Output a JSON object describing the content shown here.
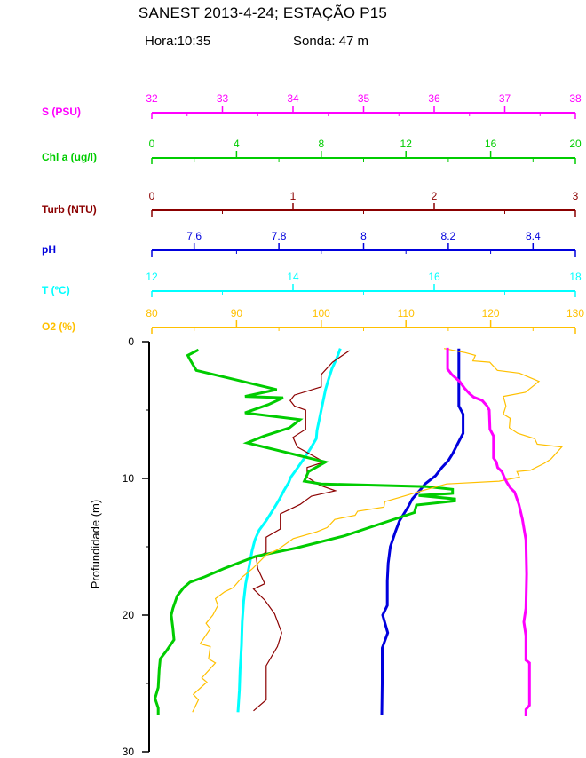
{
  "header": {
    "title": "SANEST 2013-4-24; ESTAÇÃO P15",
    "hora": "Hora:10:35",
    "sonda": "Sonda: 47 m"
  },
  "chart_data": {
    "type": "line",
    "orientation": "vertical-profile",
    "grid": false,
    "legend": "none",
    "depth_axis": {
      "label": "Profundidade (m)",
      "min": 0,
      "max": 30,
      "labels": [
        {
          "v": 0,
          "t": "0"
        },
        {
          "v": 10,
          "t": "10"
        },
        {
          "v": 20,
          "t": "20"
        },
        {
          "v": 30,
          "t": "30"
        }
      ],
      "minors": [
        5,
        15,
        25
      ],
      "color": "#000000"
    },
    "axes": [
      {
        "id": "S",
        "name": "S (PSU)",
        "color": "#FF00FF",
        "min": 32,
        "max": 38,
        "labels": [
          {
            "v": 32,
            "t": "32"
          },
          {
            "v": 33,
            "t": "33"
          },
          {
            "v": 34,
            "t": "34"
          },
          {
            "v": 35,
            "t": "35"
          },
          {
            "v": 36,
            "t": "36"
          },
          {
            "v": 37,
            "t": "37"
          },
          {
            "v": 38,
            "t": "38"
          }
        ],
        "minors": [
          32.5,
          33.5,
          34.5,
          35.5,
          36.5,
          37.5
        ]
      },
      {
        "id": "Chl",
        "name": "Chl a (ug/l)",
        "color": "#00CC00",
        "min": 0,
        "max": 20,
        "labels": [
          {
            "v": 0,
            "t": "0"
          },
          {
            "v": 4,
            "t": "4"
          },
          {
            "v": 8,
            "t": "8"
          },
          {
            "v": 12,
            "t": "12"
          },
          {
            "v": 16,
            "t": "16"
          },
          {
            "v": 20,
            "t": "20"
          }
        ],
        "minors": [
          2,
          6,
          10,
          14,
          18
        ]
      },
      {
        "id": "Turb",
        "name": "Turb (NTU)",
        "color": "#8B0000",
        "min": 0,
        "max": 3,
        "labels": [
          {
            "v": 0,
            "t": "0"
          },
          {
            "v": 1,
            "t": "1"
          },
          {
            "v": 2,
            "t": "2"
          },
          {
            "v": 3,
            "t": "3"
          }
        ],
        "minors": [
          0.5,
          1.5,
          2.5
        ]
      },
      {
        "id": "pH",
        "name": "pH",
        "color": "#0000DD",
        "min": 7.5,
        "max": 8.5,
        "labels": [
          {
            "v": 7.6,
            "t": "7.6"
          },
          {
            "v": 7.8,
            "t": "7.8"
          },
          {
            "v": 8,
            "t": "8"
          },
          {
            "v": 8.2,
            "t": "8.2"
          },
          {
            "v": 8.4,
            "t": "8.4"
          }
        ],
        "minors": [
          7.7,
          7.9,
          8.1,
          8.3
        ]
      },
      {
        "id": "T",
        "name": "T (ºC)",
        "color": "#00FFFF",
        "min": 12,
        "max": 18,
        "labels": [
          {
            "v": 12,
            "t": "12"
          },
          {
            "v": 14,
            "t": "14"
          },
          {
            "v": 16,
            "t": "16"
          },
          {
            "v": 18,
            "t": "18"
          }
        ],
        "minors": [
          13,
          15,
          17
        ]
      },
      {
        "id": "O2",
        "name": "O2 (%)",
        "color": "#FFC000",
        "min": 80,
        "max": 130,
        "labels": [
          {
            "v": 80,
            "t": "80"
          },
          {
            "v": 90,
            "t": "90"
          },
          {
            "v": 100,
            "t": "100"
          },
          {
            "v": 110,
            "t": "110"
          },
          {
            "v": 120,
            "t": "120"
          },
          {
            "v": 130,
            "t": "130"
          }
        ],
        "minors": [
          85,
          95,
          105,
          115,
          125
        ]
      }
    ],
    "series": [
      {
        "axis": "T",
        "name": "temperature-profile",
        "color": "#00FFFF",
        "width": 3,
        "points": [
          [
            14.67,
            0.5
          ],
          [
            14.62,
            1.2
          ],
          [
            14.55,
            2.0
          ],
          [
            14.5,
            2.8
          ],
          [
            14.46,
            3.5
          ],
          [
            14.42,
            4.5
          ],
          [
            14.38,
            5.5
          ],
          [
            14.34,
            6.5
          ],
          [
            14.33,
            7.1
          ],
          [
            14.25,
            7.8
          ],
          [
            14.15,
            8.6
          ],
          [
            14.04,
            9.4
          ],
          [
            13.97,
            9.9
          ],
          [
            13.94,
            10.3
          ],
          [
            13.87,
            10.9
          ],
          [
            13.81,
            11.5
          ],
          [
            13.73,
            12.2
          ],
          [
            13.62,
            13.1
          ],
          [
            13.52,
            13.8
          ],
          [
            13.46,
            14.5
          ],
          [
            13.42,
            15.3
          ],
          [
            13.38,
            16.4
          ],
          [
            13.33,
            17.7
          ],
          [
            13.3,
            19.0
          ],
          [
            13.28,
            20.5
          ],
          [
            13.27,
            22.2
          ],
          [
            13.25,
            24.0
          ],
          [
            13.24,
            25.5
          ],
          [
            13.22,
            27.1
          ]
        ]
      },
      {
        "axis": "pH",
        "name": "ph-profile",
        "color": "#0000DD",
        "width": 3,
        "points": [
          [
            8.225,
            0.5
          ],
          [
            8.225,
            4.7
          ],
          [
            8.235,
            5.3
          ],
          [
            8.235,
            6.7
          ],
          [
            8.225,
            7.3
          ],
          [
            8.21,
            8.2
          ],
          [
            8.2,
            8.7
          ],
          [
            8.185,
            9.2
          ],
          [
            8.17,
            9.8
          ],
          [
            8.145,
            10.4
          ],
          [
            8.135,
            10.8
          ],
          [
            8.115,
            11.5
          ],
          [
            8.105,
            12.1
          ],
          [
            8.085,
            13.1
          ],
          [
            8.075,
            13.9
          ],
          [
            8.063,
            15.0
          ],
          [
            8.058,
            16.2
          ],
          [
            8.056,
            17.5
          ],
          [
            8.056,
            19.3
          ],
          [
            8.045,
            20.0
          ],
          [
            8.057,
            21.3
          ],
          [
            8.044,
            22.4
          ],
          [
            8.044,
            25.0
          ],
          [
            8.043,
            27.3
          ]
        ]
      },
      {
        "axis": "Turb",
        "name": "turbidity-profile",
        "color": "#8B0000",
        "width": 1.2,
        "points": [
          [
            1.4,
            0.65
          ],
          [
            1.28,
            1.5
          ],
          [
            1.2,
            2.4
          ],
          [
            1.2,
            3.3
          ],
          [
            1.01,
            3.9
          ],
          [
            0.98,
            4.3
          ],
          [
            1.01,
            4.7
          ],
          [
            1.09,
            5.0
          ],
          [
            1.09,
            6.4
          ],
          [
            1.0,
            7.0
          ],
          [
            1.03,
            7.7
          ],
          [
            1.22,
            8.8
          ],
          [
            1.1,
            9.2
          ],
          [
            1.1,
            9.9
          ],
          [
            1.19,
            10.5
          ],
          [
            1.3,
            10.9
          ],
          [
            1.13,
            11.3
          ],
          [
            1.05,
            11.9
          ],
          [
            0.99,
            12.2
          ],
          [
            0.91,
            12.6
          ],
          [
            0.91,
            13.7
          ],
          [
            0.81,
            14.3
          ],
          [
            0.81,
            15.4
          ],
          [
            0.74,
            15.8
          ],
          [
            0.75,
            16.6
          ],
          [
            0.8,
            17.7
          ],
          [
            0.72,
            18.1
          ],
          [
            0.8,
            18.9
          ],
          [
            0.87,
            19.9
          ],
          [
            0.92,
            21.3
          ],
          [
            0.89,
            22.3
          ],
          [
            0.81,
            23.7
          ],
          [
            0.81,
            26.2
          ],
          [
            0.72,
            27.0
          ]
        ]
      },
      {
        "axis": "Chl",
        "name": "chlorophyll-profile",
        "color": "#00CC00",
        "width": 3,
        "points": [
          [
            2.2,
            0.6
          ],
          [
            1.7,
            1.0
          ],
          [
            1.8,
            1.3
          ],
          [
            2.1,
            2.1
          ],
          [
            5.9,
            3.5
          ],
          [
            4.4,
            4.0
          ],
          [
            6.2,
            4.1
          ],
          [
            5.5,
            4.6
          ],
          [
            4.4,
            5.2
          ],
          [
            7.0,
            5.7
          ],
          [
            6.5,
            6.3
          ],
          [
            5.3,
            6.9
          ],
          [
            4.5,
            7.4
          ],
          [
            8.2,
            8.8
          ],
          [
            7.4,
            9.5
          ],
          [
            7.2,
            10.2
          ],
          [
            8.0,
            10.4
          ],
          [
            13.0,
            10.6
          ],
          [
            14.2,
            10.8
          ],
          [
            14.2,
            11.1
          ],
          [
            12.6,
            11.25
          ],
          [
            14.3,
            11.5
          ],
          [
            14.3,
            11.65
          ],
          [
            12.5,
            11.95
          ],
          [
            12.4,
            12.5
          ],
          [
            9.1,
            14.2
          ],
          [
            6.8,
            15.1
          ],
          [
            4.9,
            15.7
          ],
          [
            3.4,
            16.6
          ],
          [
            2.5,
            17.2
          ],
          [
            1.8,
            17.6
          ],
          [
            1.5,
            18.0
          ],
          [
            1.2,
            18.6
          ],
          [
            1.0,
            19.5
          ],
          [
            0.92,
            20.0
          ],
          [
            1.0,
            21.0
          ],
          [
            1.05,
            21.8
          ],
          [
            0.7,
            22.6
          ],
          [
            0.4,
            23.2
          ],
          [
            0.35,
            24.0
          ],
          [
            0.3,
            25.3
          ],
          [
            0.15,
            26.1
          ],
          [
            0.3,
            26.8
          ],
          [
            0.3,
            27.3
          ]
        ]
      },
      {
        "axis": "O2",
        "name": "oxygen-profile",
        "color": "#FFC000",
        "width": 1.2,
        "points": [
          [
            114.5,
            0.5
          ],
          [
            117.0,
            0.8
          ],
          [
            118.2,
            1.0
          ],
          [
            117.9,
            1.4
          ],
          [
            119.9,
            1.5
          ],
          [
            120.8,
            2.1
          ],
          [
            123.4,
            2.3
          ],
          [
            125.7,
            2.9
          ],
          [
            124.1,
            3.7
          ],
          [
            121.5,
            4.0
          ],
          [
            121.8,
            4.7
          ],
          [
            121.5,
            5.3
          ],
          [
            122.3,
            5.6
          ],
          [
            122.2,
            6.3
          ],
          [
            123.2,
            6.7
          ],
          [
            125.2,
            7.1
          ],
          [
            125.5,
            7.5
          ],
          [
            128.4,
            7.7
          ],
          [
            127.1,
            8.6
          ],
          [
            126.3,
            8.9
          ],
          [
            124.7,
            9.4
          ],
          [
            123.1,
            9.5
          ],
          [
            123.4,
            9.9
          ],
          [
            121.0,
            10.2
          ],
          [
            114.8,
            10.4
          ],
          [
            111.9,
            10.9
          ],
          [
            109.2,
            11.4
          ],
          [
            107.5,
            11.7
          ],
          [
            107.4,
            12.1
          ],
          [
            104.3,
            12.4
          ],
          [
            104.0,
            12.7
          ],
          [
            101.6,
            13.0
          ],
          [
            100.7,
            13.6
          ],
          [
            99.5,
            13.9
          ],
          [
            96.7,
            14.4
          ],
          [
            94.9,
            15.2
          ],
          [
            93.5,
            15.6
          ],
          [
            91.9,
            16.6
          ],
          [
            90.7,
            17.2
          ],
          [
            89.6,
            18.0
          ],
          [
            88.6,
            18.3
          ],
          [
            87.5,
            18.8
          ],
          [
            87.8,
            19.3
          ],
          [
            87.2,
            20.0
          ],
          [
            86.4,
            20.6
          ],
          [
            86.9,
            21.0
          ],
          [
            85.7,
            22.1
          ],
          [
            86.9,
            22.3
          ],
          [
            86.7,
            23.2
          ],
          [
            87.5,
            23.5
          ],
          [
            85.9,
            24.6
          ],
          [
            86.5,
            24.9
          ],
          [
            84.9,
            25.8
          ],
          [
            85.5,
            26.2
          ],
          [
            84.8,
            27.1
          ]
        ]
      },
      {
        "axis": "S",
        "name": "salinity-profile",
        "color": "#FF00FF",
        "width": 3,
        "points": [
          [
            36.19,
            0.45
          ],
          [
            36.19,
            2.0
          ],
          [
            36.25,
            2.4
          ],
          [
            36.36,
            2.9
          ],
          [
            36.43,
            3.4
          ],
          [
            36.5,
            3.8
          ],
          [
            36.56,
            4.05
          ],
          [
            36.68,
            4.3
          ],
          [
            36.75,
            4.7
          ],
          [
            36.78,
            5.0
          ],
          [
            36.79,
            6.4
          ],
          [
            36.84,
            6.9
          ],
          [
            36.84,
            8.5
          ],
          [
            36.88,
            8.8
          ],
          [
            36.9,
            9.2
          ],
          [
            36.96,
            9.5
          ],
          [
            37.0,
            10.0
          ],
          [
            37.03,
            10.3
          ],
          [
            37.08,
            10.7
          ],
          [
            37.14,
            11.0
          ],
          [
            37.2,
            11.9
          ],
          [
            37.25,
            13.0
          ],
          [
            37.3,
            14.5
          ],
          [
            37.31,
            17.0
          ],
          [
            37.3,
            19.5
          ],
          [
            37.27,
            20.5
          ],
          [
            37.3,
            21.5
          ],
          [
            37.3,
            23.3
          ],
          [
            37.35,
            23.5
          ],
          [
            37.35,
            26.6
          ],
          [
            37.3,
            26.9
          ],
          [
            37.3,
            27.4
          ]
        ]
      }
    ]
  }
}
